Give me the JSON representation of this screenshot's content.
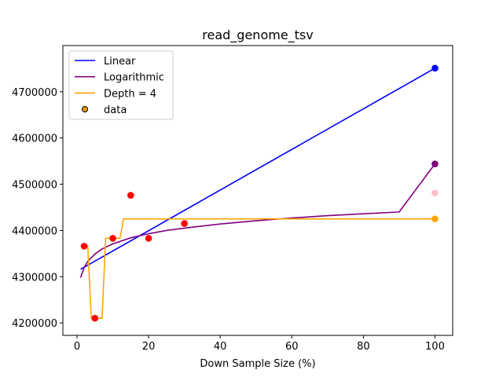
{
  "chart_data": {
    "type": "line",
    "title": "read_genome_tsv",
    "xlabel": "Down Sample Size (%)",
    "ylabel": "",
    "xlim": [
      -3.95,
      104.95
    ],
    "ylim": [
      4173000,
      4800000
    ],
    "x_ticks": [
      0,
      20,
      40,
      60,
      80,
      100
    ],
    "y_ticks": [
      4200000,
      4300000,
      4400000,
      4500000,
      4600000,
      4700000
    ],
    "grid": false,
    "legend_position": "top-left",
    "series": [
      {
        "name": "Linear",
        "kind": "line",
        "color": "#0000ff",
        "x": [
          1,
          100
        ],
        "y": [
          4316000,
          4751000
        ]
      },
      {
        "name": "Logarithmic",
        "kind": "line",
        "color": "#800080",
        "x": [
          1,
          2,
          3,
          5,
          7,
          10,
          15,
          20,
          25,
          30,
          40,
          50,
          60,
          70,
          80,
          90,
          100
        ],
        "y": [
          4298000,
          4320000,
          4333000,
          4349000,
          4360000,
          4371000,
          4384000,
          4393000,
          4400000,
          4405000,
          4414000,
          4421000,
          4427000,
          4432000,
          4436000,
          4440000,
          4544000
        ]
      },
      {
        "name": "Depth = 4",
        "kind": "line",
        "color": "#ffa500",
        "x": [
          1,
          2,
          3,
          4,
          5,
          6,
          7,
          8,
          9,
          10,
          11,
          12,
          13,
          14,
          15,
          20,
          30,
          100
        ],
        "y": [
          4366000,
          4366000,
          4366000,
          4210000,
          4210000,
          4210000,
          4210000,
          4383000,
          4383000,
          4383000,
          4383000,
          4383000,
          4425000,
          4425000,
          4425000,
          4425000,
          4425000,
          4425000
        ]
      },
      {
        "name": "data",
        "kind": "scatter",
        "color": "#ff0000",
        "edgecolor": "#000000",
        "points": [
          {
            "x": 2,
            "y": 4366000,
            "color": "#ff0000"
          },
          {
            "x": 5,
            "y": 4210000,
            "color": "#ff0000"
          },
          {
            "x": 10,
            "y": 4383000,
            "color": "#ff0000"
          },
          {
            "x": 15,
            "y": 4476000,
            "color": "#ff0000"
          },
          {
            "x": 20,
            "y": 4383000,
            "color": "#ff0000"
          },
          {
            "x": 30,
            "y": 4415000,
            "color": "#ff0000"
          },
          {
            "x": 100,
            "y": 4751000,
            "color": "#0000ff"
          },
          {
            "x": 100,
            "y": 4544000,
            "color": "#800080"
          },
          {
            "x": 100,
            "y": 4481000,
            "color": "#ffc0cb"
          },
          {
            "x": 100,
            "y": 4425000,
            "color": "#ffa500"
          }
        ]
      }
    ]
  }
}
